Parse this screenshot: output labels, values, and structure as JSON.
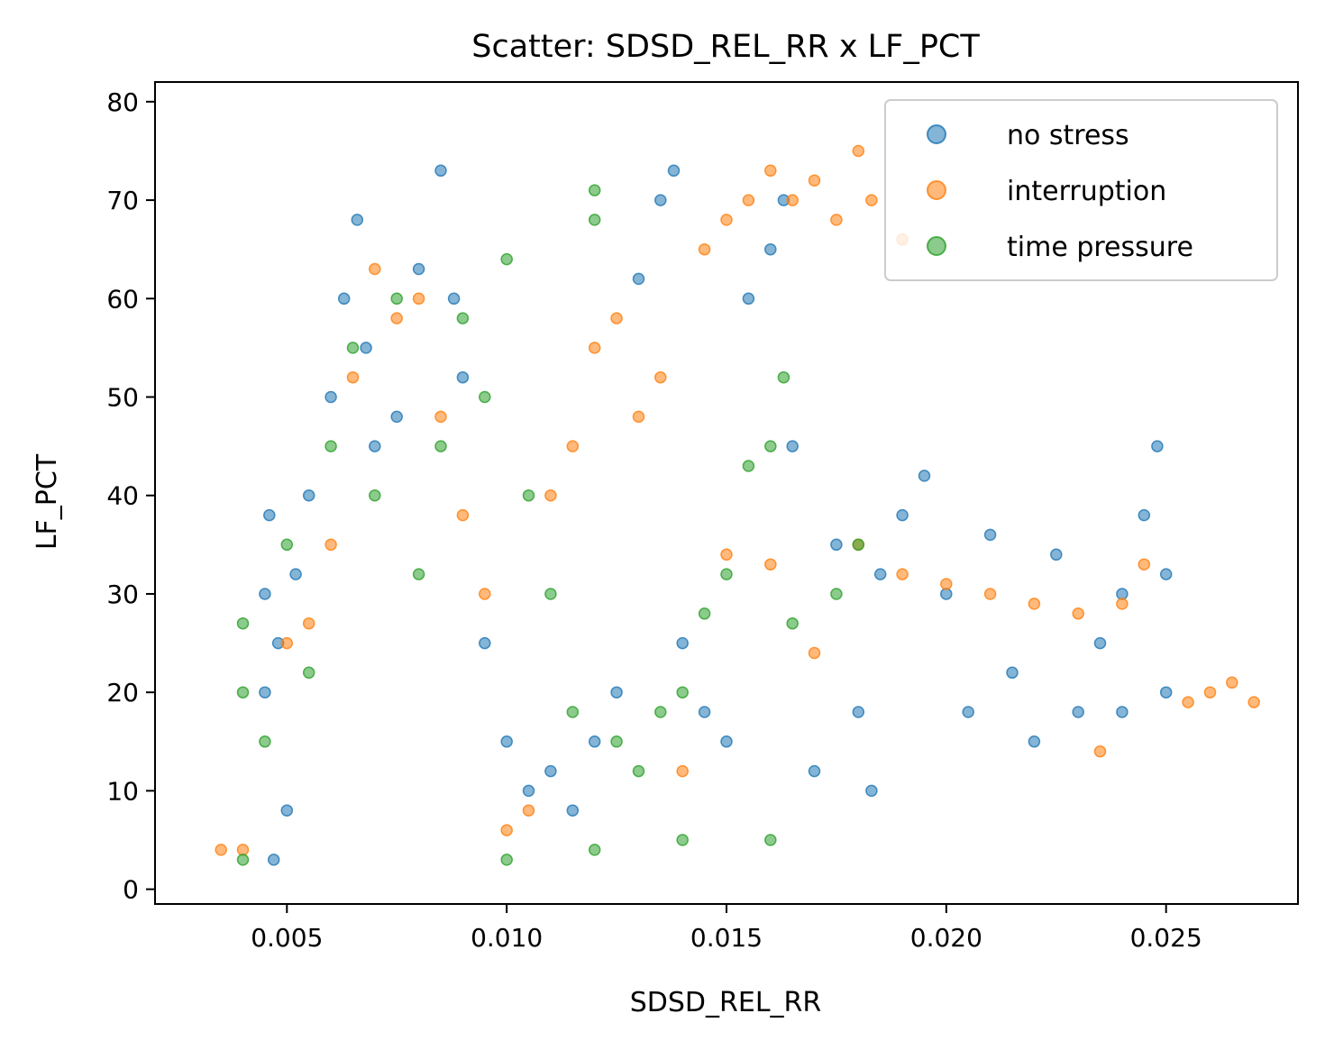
{
  "chart_data": {
    "type": "scatter",
    "title": "Scatter: SDSD_REL_RR x LF_PCT",
    "xlabel": "SDSD_REL_RR",
    "ylabel": "LF_PCT",
    "xlim": [
      0.002,
      0.028
    ],
    "ylim": [
      -1.5,
      82
    ],
    "xticks": [
      0.005,
      0.01,
      0.015,
      0.02,
      0.025
    ],
    "xtick_labels": [
      "0.005",
      "0.010",
      "0.015",
      "0.020",
      "0.025"
    ],
    "yticks": [
      0,
      10,
      20,
      30,
      40,
      50,
      60,
      70,
      80
    ],
    "ytick_labels": [
      "0",
      "10",
      "20",
      "30",
      "40",
      "50",
      "60",
      "70",
      "80"
    ],
    "grid": false,
    "legend_position": "top-right",
    "series": [
      {
        "name": "no stress",
        "color": "#1f77b4",
        "points": [
          [
            0.0047,
            3
          ],
          [
            0.005,
            8
          ],
          [
            0.0045,
            20
          ],
          [
            0.0045,
            30
          ],
          [
            0.0046,
            38
          ],
          [
            0.0048,
            25
          ],
          [
            0.0052,
            32
          ],
          [
            0.0055,
            40
          ],
          [
            0.006,
            50
          ],
          [
            0.0063,
            60
          ],
          [
            0.0066,
            68
          ],
          [
            0.0068,
            55
          ],
          [
            0.007,
            45
          ],
          [
            0.0075,
            48
          ],
          [
            0.008,
            63
          ],
          [
            0.0085,
            73
          ],
          [
            0.0088,
            60
          ],
          [
            0.009,
            52
          ],
          [
            0.0095,
            25
          ],
          [
            0.01,
            15
          ],
          [
            0.0105,
            10
          ],
          [
            0.011,
            12
          ],
          [
            0.0115,
            8
          ],
          [
            0.012,
            15
          ],
          [
            0.0125,
            20
          ],
          [
            0.013,
            62
          ],
          [
            0.0135,
            70
          ],
          [
            0.0138,
            73
          ],
          [
            0.014,
            25
          ],
          [
            0.0145,
            18
          ],
          [
            0.015,
            15
          ],
          [
            0.0155,
            60
          ],
          [
            0.016,
            65
          ],
          [
            0.0163,
            70
          ],
          [
            0.0165,
            45
          ],
          [
            0.017,
            12
          ],
          [
            0.0175,
            35
          ],
          [
            0.018,
            18
          ],
          [
            0.0183,
            10
          ],
          [
            0.0185,
            32
          ],
          [
            0.019,
            38
          ],
          [
            0.0195,
            42
          ],
          [
            0.02,
            30
          ],
          [
            0.0205,
            18
          ],
          [
            0.021,
            36
          ],
          [
            0.0215,
            22
          ],
          [
            0.022,
            15
          ],
          [
            0.0225,
            34
          ],
          [
            0.023,
            18
          ],
          [
            0.0235,
            25
          ],
          [
            0.024,
            30
          ],
          [
            0.0245,
            38
          ],
          [
            0.0248,
            45
          ],
          [
            0.025,
            20
          ],
          [
            0.025,
            32
          ],
          [
            0.024,
            18
          ]
        ]
      },
      {
        "name": "interruption",
        "color": "#ff7f0e",
        "points": [
          [
            0.0035,
            4
          ],
          [
            0.004,
            4
          ],
          [
            0.005,
            25
          ],
          [
            0.0055,
            27
          ],
          [
            0.006,
            35
          ],
          [
            0.0065,
            52
          ],
          [
            0.007,
            63
          ],
          [
            0.0075,
            58
          ],
          [
            0.008,
            60
          ],
          [
            0.0085,
            48
          ],
          [
            0.009,
            38
          ],
          [
            0.0095,
            30
          ],
          [
            0.01,
            6
          ],
          [
            0.0105,
            8
          ],
          [
            0.011,
            40
          ],
          [
            0.0115,
            45
          ],
          [
            0.012,
            55
          ],
          [
            0.0125,
            58
          ],
          [
            0.013,
            48
          ],
          [
            0.0135,
            52
          ],
          [
            0.014,
            12
          ],
          [
            0.0145,
            65
          ],
          [
            0.015,
            68
          ],
          [
            0.0155,
            70
          ],
          [
            0.016,
            73
          ],
          [
            0.0165,
            70
          ],
          [
            0.017,
            72
          ],
          [
            0.0175,
            68
          ],
          [
            0.018,
            75
          ],
          [
            0.0183,
            70
          ],
          [
            0.019,
            66
          ],
          [
            0.015,
            34
          ],
          [
            0.016,
            33
          ],
          [
            0.017,
            24
          ],
          [
            0.018,
            35
          ],
          [
            0.019,
            32
          ],
          [
            0.02,
            31
          ],
          [
            0.021,
            30
          ],
          [
            0.022,
            29
          ],
          [
            0.023,
            28
          ],
          [
            0.024,
            29
          ],
          [
            0.0245,
            33
          ],
          [
            0.0235,
            14
          ],
          [
            0.0255,
            19
          ],
          [
            0.026,
            20
          ],
          [
            0.0265,
            21
          ],
          [
            0.027,
            19
          ]
        ]
      },
      {
        "name": "time pressure",
        "color": "#2ca02c",
        "points": [
          [
            0.004,
            3
          ],
          [
            0.004,
            20
          ],
          [
            0.004,
            27
          ],
          [
            0.0045,
            15
          ],
          [
            0.005,
            35
          ],
          [
            0.0055,
            22
          ],
          [
            0.006,
            45
          ],
          [
            0.0065,
            55
          ],
          [
            0.007,
            40
          ],
          [
            0.0075,
            60
          ],
          [
            0.008,
            32
          ],
          [
            0.0085,
            45
          ],
          [
            0.009,
            58
          ],
          [
            0.0095,
            50
          ],
          [
            0.01,
            64
          ],
          [
            0.0105,
            40
          ],
          [
            0.011,
            30
          ],
          [
            0.0115,
            18
          ],
          [
            0.012,
            68
          ],
          [
            0.012,
            71
          ],
          [
            0.0125,
            15
          ],
          [
            0.013,
            12
          ],
          [
            0.0135,
            18
          ],
          [
            0.014,
            20
          ],
          [
            0.0145,
            28
          ],
          [
            0.015,
            32
          ],
          [
            0.0155,
            43
          ],
          [
            0.016,
            45
          ],
          [
            0.0163,
            52
          ],
          [
            0.0165,
            27
          ],
          [
            0.016,
            5
          ],
          [
            0.0175,
            30
          ],
          [
            0.018,
            35
          ],
          [
            0.012,
            4
          ],
          [
            0.014,
            5
          ],
          [
            0.01,
            3
          ]
        ]
      }
    ]
  }
}
